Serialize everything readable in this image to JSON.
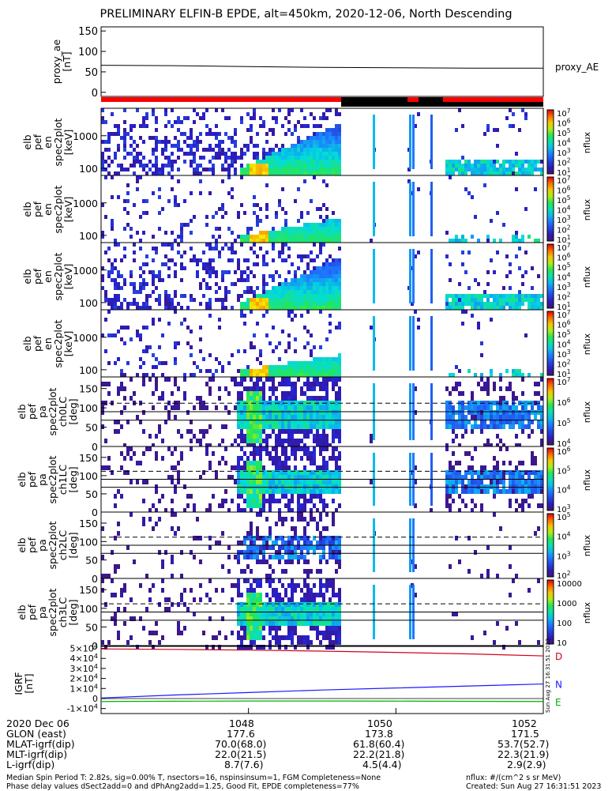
{
  "title": "PRELIMINARY ELFIN-B EPDE, alt=450km, 2020-12-06, North Descending",
  "colors": {
    "d_line": "#d0021b",
    "n_line": "#1a1aff",
    "e_line": "#00b000",
    "bar_red": "#ff0000",
    "bar_black": "#000000"
  },
  "chart_data": [
    {
      "id": "proxy_ae",
      "type": "line",
      "ylabel": "proxy_ae\n[nT]",
      "legend": "proxy_AE",
      "ylim": [
        -10,
        160
      ],
      "yticks": [
        0,
        50,
        100,
        150
      ],
      "ytick_labels": [
        "0",
        "50",
        "100",
        "150"
      ],
      "x": [
        1046.0,
        1047.0,
        1048.0,
        1049.0,
        1050.0,
        1051.0,
        1052.0
      ],
      "values": [
        66,
        65,
        63,
        61,
        60,
        59,
        59
      ]
    },
    {
      "id": "spec_en_1",
      "type": "heatmap",
      "ylabel": "elb\npef\nen\nspec2plot\n[keV]",
      "yscale": "log",
      "ylim": [
        60,
        7000
      ],
      "ytick_labels": [
        "100",
        "1000"
      ],
      "colorbar": {
        "label": "nflux",
        "tick_labels": [
          "10^1",
          "10^2",
          "10^3",
          "10^4",
          "10^5",
          "10^6",
          "10^7"
        ]
      }
    },
    {
      "id": "spec_en_2",
      "type": "heatmap",
      "ylabel": "elb\npef\nen\nspec2plot\n[keV]",
      "yscale": "log",
      "ylim": [
        60,
        7000
      ],
      "ytick_labels": [
        "100",
        "1000"
      ],
      "colorbar": {
        "label": "nflux",
        "tick_labels": [
          "10^1",
          "10^2",
          "10^3",
          "10^4",
          "10^5",
          "10^6",
          "10^7"
        ]
      }
    },
    {
      "id": "spec_en_3",
      "type": "heatmap",
      "ylabel": "elb\npef\nen\nspec2plot\n[keV]",
      "yscale": "log",
      "ylim": [
        60,
        7000
      ],
      "ytick_labels": [
        "100",
        "1000"
      ],
      "colorbar": {
        "label": "nflux",
        "tick_labels": [
          "10^1",
          "10^2",
          "10^3",
          "10^4",
          "10^5",
          "10^6",
          "10^7"
        ]
      }
    },
    {
      "id": "spec_en_4",
      "type": "heatmap",
      "ylabel": "elb\npef\nen\nspec2plot\n[keV]",
      "yscale": "log",
      "ylim": [
        60,
        7000
      ],
      "ytick_labels": [
        "100",
        "1000"
      ],
      "colorbar": {
        "label": "nflux",
        "tick_labels": [
          "10^1",
          "10^2",
          "10^3",
          "10^4",
          "10^5",
          "10^6",
          "10^7"
        ]
      }
    },
    {
      "id": "pa_ch0",
      "type": "heatmap",
      "ylabel": "elb\npef\npa\nspec2plot\nch0LC\n[deg]",
      "ylim": [
        0,
        180
      ],
      "ytick_labels": [
        "0",
        "50",
        "100",
        "150"
      ],
      "colorbar": {
        "label": "nflux",
        "tick_labels": [
          "10^4",
          "10^5",
          "10^6",
          "10^7"
        ]
      }
    },
    {
      "id": "pa_ch1",
      "type": "heatmap",
      "ylabel": "elb\npef\npa\nspec2plot\nch1LC\n[deg]",
      "ylim": [
        0,
        180
      ],
      "ytick_labels": [
        "0",
        "50",
        "100",
        "150"
      ],
      "colorbar": {
        "label": "nflux",
        "tick_labels": [
          "10^3",
          "10^4",
          "10^5",
          "10^6"
        ]
      }
    },
    {
      "id": "pa_ch2",
      "type": "heatmap",
      "ylabel": "elb\npef\npa\nspec2plot\nch2LC\n[deg]",
      "ylim": [
        0,
        180
      ],
      "ytick_labels": [
        "0",
        "50",
        "100",
        "150"
      ],
      "colorbar": {
        "label": "nflux",
        "tick_labels": [
          "10^2",
          "10^3",
          "10^4",
          "10^5"
        ]
      }
    },
    {
      "id": "pa_ch3",
      "type": "heatmap",
      "ylabel": "elb\npef\npa\nspec2plot\nch3LC\n[deg]",
      "ylim": [
        0,
        180
      ],
      "ytick_labels": [
        "0",
        "50",
        "100",
        "150"
      ],
      "colorbar": {
        "label": "nflux",
        "tick_labels": [
          "10",
          "100",
          "1000",
          "10000"
        ]
      }
    },
    {
      "id": "igrf",
      "type": "line",
      "ylabel": "IGRF\n[nT]",
      "ylim": [
        -15000,
        52000
      ],
      "ytick_labels": [
        "-1×10^4",
        "0",
        "1×10^4",
        "2×10^4",
        "3×10^4",
        "4×10^4",
        "5×10^4"
      ],
      "x": [
        1046.0,
        1047.0,
        1048.0,
        1049.0,
        1050.0,
        1051.0,
        1052.0
      ],
      "series": [
        {
          "name": "D",
          "values": [
            49500,
            49000,
            48300,
            47300,
            46000,
            44500,
            42500
          ]
        },
        {
          "name": "N",
          "values": [
            500,
            3500,
            6000,
            8500,
            10500,
            12500,
            14500
          ]
        },
        {
          "name": "E",
          "values": [
            -3000,
            -2700,
            -2500,
            -2500,
            -2600,
            -2800,
            -3000
          ]
        }
      ],
      "stamp": "Sun Aug 27 16:31:51 2023"
    }
  ],
  "x_axis": {
    "tick_labels": [
      "1048",
      "1050",
      "1052"
    ],
    "rows": [
      {
        "label": "2020 Dec 06",
        "values": [
          "",
          "",
          ""
        ]
      },
      {
        "label": "GLON (east)",
        "values": [
          "177.6",
          "173.8",
          "171.5"
        ]
      },
      {
        "label": "MLAT-igrf(dip)",
        "values": [
          "70.0(68.0)",
          "61.8(60.4)",
          "53.7(52.7)"
        ]
      },
      {
        "label": "MLT-igrf(dip)",
        "values": [
          "22.0(21.5)",
          "22.2(21.8)",
          "22.3(21.9)"
        ]
      },
      {
        "label": "L-igrf(dip)",
        "values": [
          "8.7(7.6)",
          "4.5(4.4)",
          "2.9(2.9)"
        ]
      }
    ]
  },
  "footer": {
    "line1": "Median Spin Period T: 2.82s, sig=0.00% T, nsectors=16, nspinsinsum=1, FGM Completeness=None",
    "line2": "Phase delay values dSect2add=0 and dPhAng2add=1.25, Good Fit, EPDE completeness=77%",
    "right1": "nflux: #/(cm^2 s sr MeV)",
    "right2": "Created: Sun Aug 27 16:31:51 2023"
  }
}
